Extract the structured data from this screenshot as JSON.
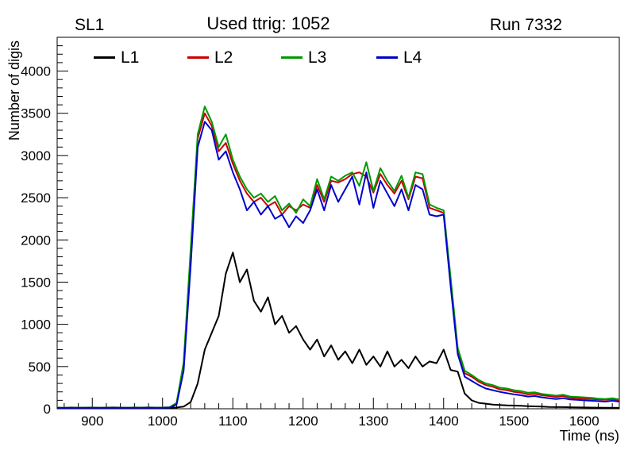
{
  "header": {
    "detector_label": "SL1",
    "ttrig_label": "Used ttrig: 1052",
    "run_label": "Run 7332"
  },
  "axes": {
    "x_title": "Time (ns)",
    "y_title": "Number of digis"
  },
  "chart_data": {
    "type": "line",
    "title": "Used ttrig: 1052",
    "xlabel": "Time (ns)",
    "ylabel": "Number of digis",
    "xlim": [
      850,
      1650
    ],
    "ylim": [
      0,
      4400
    ],
    "xticks": [
      900,
      1000,
      1100,
      1200,
      1300,
      1400,
      1500,
      1600
    ],
    "yticks": [
      0,
      500,
      1000,
      1500,
      2000,
      2500,
      3000,
      3500,
      4000
    ],
    "x_minor_step": 20,
    "y_minor_step": 100,
    "grid": false,
    "legend_position": "top-inside",
    "x": [
      850,
      860,
      870,
      880,
      890,
      900,
      910,
      920,
      930,
      940,
      950,
      960,
      970,
      980,
      990,
      1000,
      1010,
      1020,
      1030,
      1040,
      1050,
      1060,
      1070,
      1080,
      1090,
      1100,
      1110,
      1120,
      1130,
      1140,
      1150,
      1160,
      1170,
      1180,
      1190,
      1200,
      1210,
      1220,
      1230,
      1240,
      1250,
      1260,
      1270,
      1280,
      1290,
      1300,
      1310,
      1320,
      1330,
      1340,
      1350,
      1360,
      1370,
      1380,
      1390,
      1400,
      1410,
      1420,
      1430,
      1440,
      1450,
      1460,
      1470,
      1480,
      1490,
      1500,
      1510,
      1520,
      1530,
      1540,
      1550,
      1560,
      1570,
      1580,
      1590,
      1600,
      1610,
      1620,
      1630,
      1640,
      1650
    ],
    "series": [
      {
        "name": "L1",
        "color": "#000000",
        "values": [
          10,
          8,
          12,
          9,
          11,
          10,
          9,
          12,
          10,
          11,
          9,
          10,
          12,
          10,
          11,
          10,
          13,
          15,
          25,
          80,
          300,
          700,
          900,
          1100,
          1600,
          1850,
          1500,
          1650,
          1280,
          1150,
          1320,
          1000,
          1100,
          900,
          980,
          820,
          700,
          820,
          620,
          750,
          580,
          680,
          540,
          700,
          520,
          620,
          500,
          680,
          500,
          580,
          480,
          620,
          500,
          560,
          540,
          700,
          460,
          440,
          180,
          100,
          70,
          60,
          50,
          45,
          40,
          38,
          35,
          30,
          28,
          25,
          22,
          20,
          20,
          18,
          16,
          15,
          14,
          13,
          12,
          12,
          10
        ]
      },
      {
        "name": "L2",
        "color": "#cc0000",
        "values": [
          12,
          10,
          14,
          11,
          12,
          13,
          11,
          12,
          14,
          12,
          11,
          13,
          12,
          14,
          12,
          13,
          16,
          60,
          500,
          1800,
          3200,
          3500,
          3350,
          3050,
          3150,
          2900,
          2700,
          2550,
          2450,
          2500,
          2400,
          2450,
          2300,
          2400,
          2350,
          2420,
          2380,
          2650,
          2450,
          2700,
          2680,
          2720,
          2780,
          2800,
          2750,
          2560,
          2780,
          2650,
          2550,
          2700,
          2480,
          2750,
          2730,
          2380,
          2350,
          2320,
          1500,
          700,
          420,
          380,
          320,
          280,
          260,
          230,
          220,
          200,
          190,
          170,
          175,
          160,
          150,
          140,
          150,
          130,
          125,
          120,
          115,
          110,
          105,
          115,
          100
        ]
      },
      {
        "name": "L3",
        "color": "#009900",
        "values": [
          14,
          12,
          15,
          13,
          14,
          15,
          13,
          14,
          16,
          14,
          13,
          15,
          14,
          16,
          14,
          15,
          18,
          70,
          550,
          1900,
          3250,
          3580,
          3400,
          3100,
          3250,
          2950,
          2750,
          2600,
          2500,
          2550,
          2450,
          2520,
          2350,
          2430,
          2320,
          2480,
          2400,
          2720,
          2480,
          2750,
          2700,
          2760,
          2800,
          2640,
          2920,
          2580,
          2850,
          2700,
          2580,
          2760,
          2500,
          2800,
          2780,
          2420,
          2380,
          2350,
          1550,
          720,
          450,
          400,
          340,
          300,
          280,
          250,
          240,
          220,
          210,
          190,
          195,
          175,
          165,
          155,
          165,
          145,
          140,
          135,
          130,
          120,
          115,
          125,
          110
        ]
      },
      {
        "name": "L4",
        "color": "#0000cc",
        "values": [
          11,
          9,
          13,
          10,
          11,
          12,
          10,
          11,
          13,
          11,
          10,
          12,
          11,
          13,
          11,
          12,
          14,
          50,
          450,
          1700,
          3100,
          3400,
          3300,
          2950,
          3050,
          2800,
          2600,
          2350,
          2450,
          2300,
          2400,
          2250,
          2300,
          2150,
          2280,
          2200,
          2350,
          2600,
          2350,
          2650,
          2450,
          2600,
          2750,
          2420,
          2800,
          2380,
          2700,
          2550,
          2400,
          2600,
          2350,
          2650,
          2600,
          2300,
          2280,
          2300,
          1450,
          650,
          380,
          330,
          280,
          240,
          220,
          200,
          185,
          170,
          160,
          145,
          150,
          135,
          125,
          115,
          125,
          110,
          105,
          100,
          95,
          90,
          85,
          95,
          85
        ]
      }
    ]
  }
}
